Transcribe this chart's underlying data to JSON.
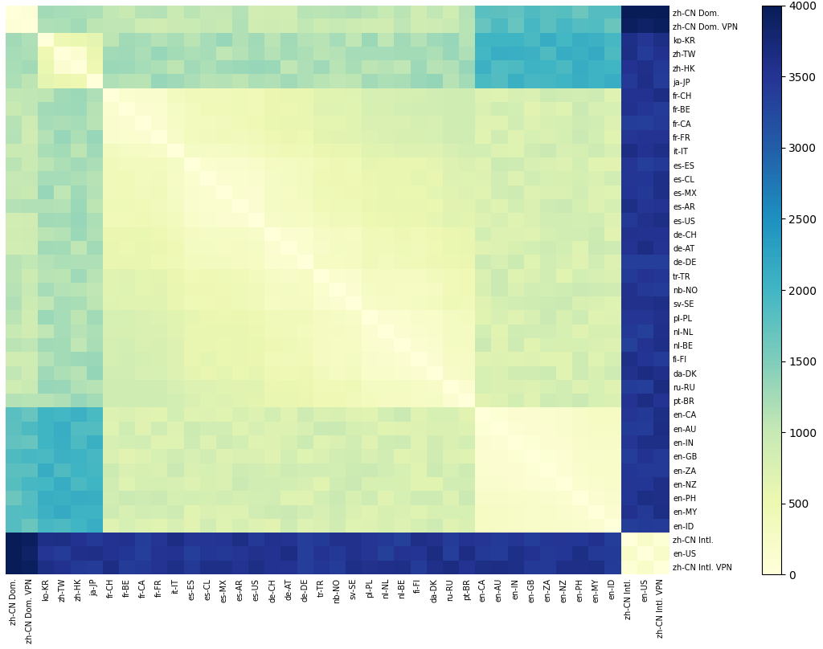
{
  "labels": [
    "zh-CN Dom.",
    "zh-CN Dom. VPN",
    "ko-KR",
    "zh-TW",
    "zh-HK",
    "ja-JP",
    "fr-CH",
    "fr-BE",
    "fr-CA",
    "fr-FR",
    "it-IT",
    "es-ES",
    "es-CL",
    "es-MX",
    "es-AR",
    "es-US",
    "de-CH",
    "de-AT",
    "de-DE",
    "tr-TR",
    "nb-NO",
    "sv-SE",
    "pl-PL",
    "nl-NL",
    "nl-BE",
    "fi-FI",
    "da-DK",
    "ru-RU",
    "pt-BR",
    "en-CA",
    "en-AU",
    "en-IN",
    "en-GB",
    "en-ZA",
    "en-NZ",
    "en-PH",
    "en-MY",
    "en-ID",
    "zh-CN Intl.",
    "en-US",
    "zh-CN Intl. VPN"
  ],
  "colormap": "YlGnBu",
  "vmin": 0,
  "vmax": 4000,
  "cbar_ticks": [
    0,
    500,
    1000,
    1500,
    2000,
    2500,
    3000,
    3500,
    4000
  ],
  "figsize": [
    10.24,
    8.08
  ],
  "dpi": 100,
  "group_ranges": {
    "G0": [
      0,
      1
    ],
    "G1": [
      2,
      5
    ],
    "G2": [
      6,
      28
    ],
    "G3": [
      29,
      37
    ],
    "G4": [
      38,
      40
    ]
  }
}
